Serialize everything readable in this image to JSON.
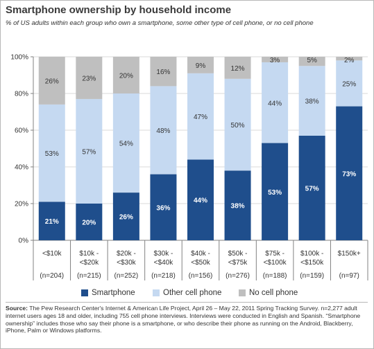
{
  "title": "Smartphone ownership by household income",
  "subtitle": "% of US adults within each group who own a smartphone, some other type of cell phone, or no cell phone",
  "colors": {
    "smartphone": "#1f4e8c",
    "other": "#c5d9f1",
    "none": "#bfbfbf",
    "grid": "#d9d9d9",
    "axis": "#808080"
  },
  "chart_data": {
    "type": "bar",
    "stacked": true,
    "ylim": [
      0,
      100
    ],
    "yticks": [
      "0%",
      "20%",
      "40%",
      "60%",
      "80%",
      "100%"
    ],
    "categories": [
      [
        "<$10k",
        "",
        "(n=204)"
      ],
      [
        "$10k -",
        "<$20k",
        "(n=215)"
      ],
      [
        "$20k -",
        "<$30k",
        "(n=252)"
      ],
      [
        "$30k -",
        "<$40k",
        "(n=218)"
      ],
      [
        "$40k -",
        "<$50k",
        "(n=156)"
      ],
      [
        "$50k -",
        "<$75k",
        "(n=276)"
      ],
      [
        "$75k -",
        "<$100k",
        "(n=188)"
      ],
      [
        "$100k -",
        "<$150k",
        "(n=159)"
      ],
      [
        "$150k+",
        "",
        "(n=97)"
      ]
    ],
    "series": [
      {
        "name": "Smartphone",
        "values": [
          21,
          20,
          26,
          36,
          44,
          38,
          53,
          57,
          73
        ],
        "labels": [
          "21%",
          "20%",
          "26%",
          "36%",
          "44%",
          "38%",
          "53%",
          "57%",
          "73%"
        ]
      },
      {
        "name": "Other cell phone",
        "values": [
          53,
          57,
          54,
          48,
          47,
          50,
          44,
          38,
          25
        ],
        "labels": [
          "53%",
          "57%",
          "54%",
          "48%",
          "47%",
          "50%",
          "44%",
          "38%",
          "25%"
        ]
      },
      {
        "name": "No cell phone",
        "values": [
          26,
          23,
          20,
          16,
          9,
          12,
          3,
          5,
          2
        ],
        "labels": [
          "26%",
          "23%",
          "20%",
          "16%",
          "9%",
          "12%",
          "3%",
          "5%",
          "2%"
        ]
      }
    ],
    "legend_position": "bottom",
    "grid": true
  },
  "source": {
    "label": "Source:",
    "text": " The Pew Research Center's Internet & American Life Project, April 26 – May 22, 2011 Spring Tracking Survey. n=2,277 adult internet users ages 18 and older, including 755 cell phone interviews. Interviews were conducted in English and Spanish. “Smartphone ownership” includes those who say their phone is a smartphone, or who describe their phone as running on the Android, Blackberry, iPhone, Palm or Windows platforms."
  }
}
